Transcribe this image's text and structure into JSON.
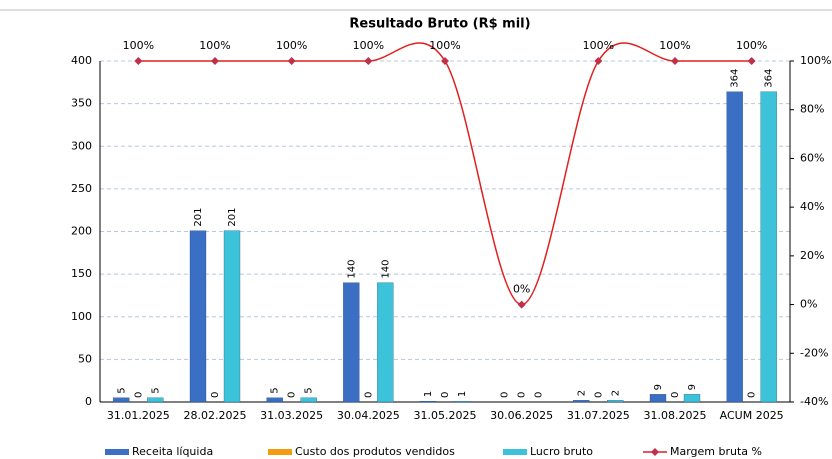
{
  "chart_data": {
    "type": "bar_line",
    "title": "Resultado Bruto (R$ mil)",
    "categories": [
      "31.01.2025",
      "28.02.2025",
      "31.03.2025",
      "30.04.2025",
      "31.05.2025",
      "30.06.2025",
      "31.07.2025",
      "31.08.2025",
      "ACUM 2025"
    ],
    "series": [
      {
        "name": "Receita líquida",
        "color": "#3a6fc4",
        "values": [
          5,
          201,
          5,
          140,
          1,
          0,
          2,
          9,
          364
        ]
      },
      {
        "name": "Custo dos produtos vendidos",
        "color": "#f39c12",
        "values": [
          0,
          0,
          0,
          0,
          0,
          0,
          0,
          0,
          0
        ]
      },
      {
        "name": "Lucro bruto",
        "color": "#3cc3d9",
        "values": [
          5,
          201,
          5,
          140,
          1,
          0,
          2,
          9,
          364
        ]
      },
      {
        "name": "Margem bruta %",
        "color": "#e02020",
        "axis": "y2",
        "line": true,
        "values": [
          100,
          100,
          100,
          100,
          100,
          0,
          100,
          100,
          100
        ],
        "value_labels": [
          "100%",
          "100%",
          "100%",
          "100%",
          "100%",
          "0%",
          "100%",
          "100%",
          "100%"
        ]
      }
    ],
    "ylim": [
      0,
      400
    ],
    "yticks": [
      0,
      50,
      100,
      150,
      200,
      250,
      300,
      350,
      400
    ],
    "y2lim": [
      -40,
      100
    ],
    "y2ticks": [
      {
        "value": -40,
        "label": "-40%"
      },
      {
        "value": -20,
        "label": "-20%"
      },
      {
        "value": 0,
        "label": "0%"
      },
      {
        "value": 20,
        "label": "20%"
      },
      {
        "value": 40,
        "label": "40%"
      },
      {
        "value": 60,
        "label": "60%"
      },
      {
        "value": 80,
        "label": "80%"
      },
      {
        "value": 100,
        "label": "100%"
      }
    ],
    "grid": true,
    "legend": "bottom"
  }
}
